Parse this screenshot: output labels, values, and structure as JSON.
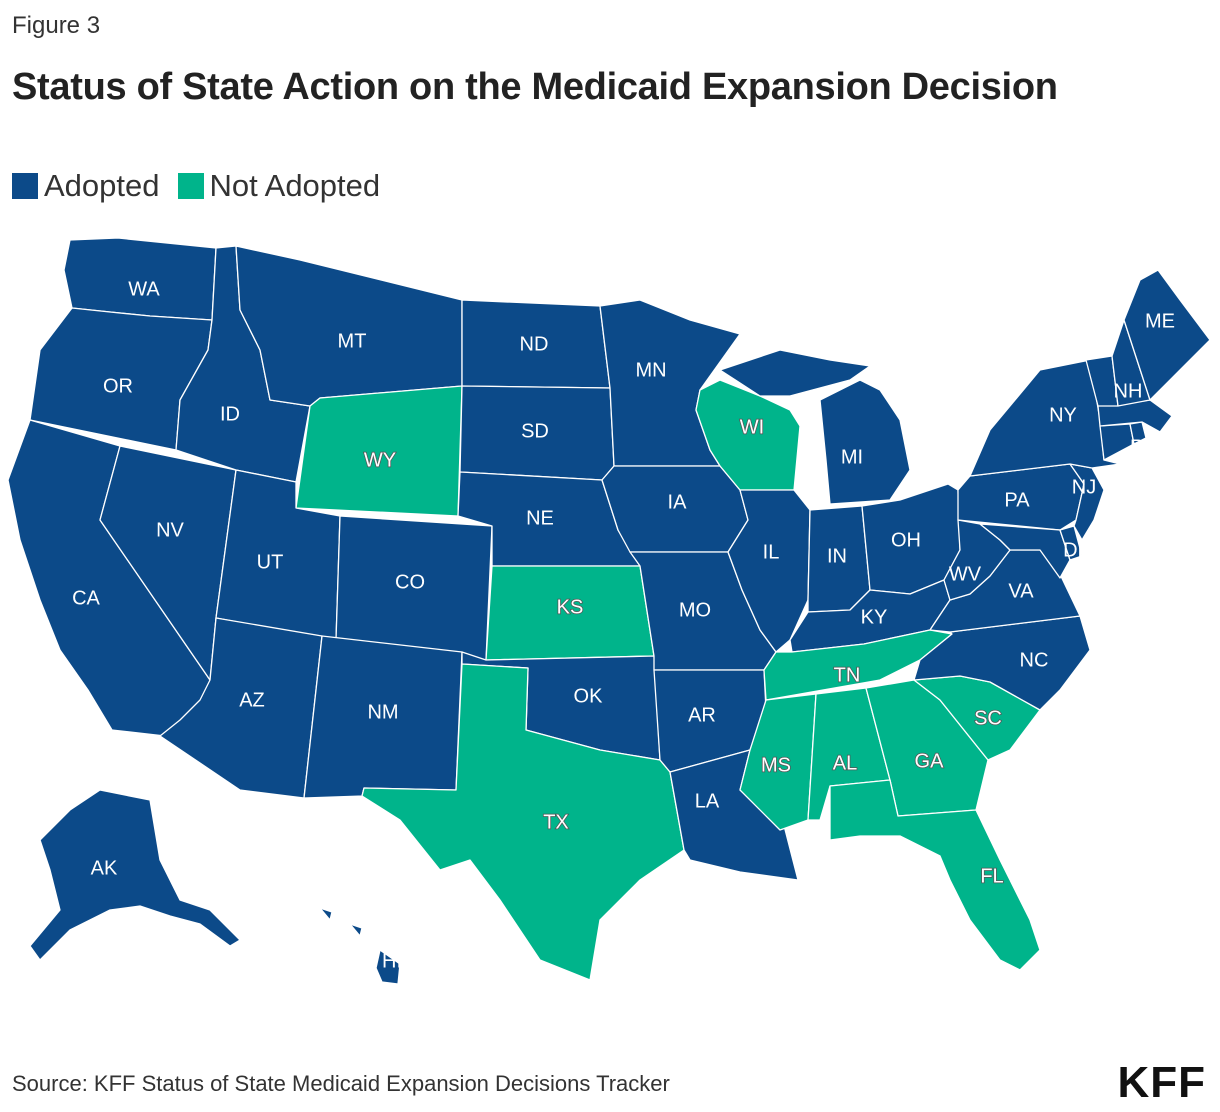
{
  "figure_label": "Figure 3",
  "title": "Status of State Action on the Medicaid Expansion Decision",
  "legend": [
    {
      "label": "Adopted",
      "color": "#0c4a89"
    },
    {
      "label": "Not Adopted",
      "color": "#00b48b"
    }
  ],
  "states": {
    "WA": "Adopted",
    "OR": "Adopted",
    "CA": "Adopted",
    "NV": "Adopted",
    "ID": "Adopted",
    "MT": "Adopted",
    "WY": "Not Adopted",
    "UT": "Adopted",
    "AZ": "Adopted",
    "CO": "Adopted",
    "NM": "Adopted",
    "ND": "Adopted",
    "SD": "Adopted",
    "NE": "Adopted",
    "KS": "Not Adopted",
    "OK": "Adopted",
    "TX": "Not Adopted",
    "MN": "Adopted",
    "IA": "Adopted",
    "MO": "Adopted",
    "AR": "Adopted",
    "LA": "Adopted",
    "WI": "Not Adopted",
    "IL": "Adopted",
    "MI": "Adopted",
    "IN": "Adopted",
    "OH": "Adopted",
    "KY": "Adopted",
    "TN": "Not Adopted",
    "MS": "Not Adopted",
    "AL": "Not Adopted",
    "GA": "Not Adopted",
    "FL": "Not Adopted",
    "SC": "Not Adopted",
    "NC": "Adopted",
    "VA": "Adopted",
    "WV": "Adopted",
    "PA": "Adopted",
    "NY": "Adopted",
    "NJ": "Adopted",
    "DE": "Adopted",
    "ME": "Adopted",
    "NH": "Adopted",
    "RI": "Adopted",
    "VT": "Adopted",
    "MA": "Adopted",
    "CT": "Adopted",
    "MD": "Adopted",
    "AK": "Adopted",
    "HI": "Adopted"
  },
  "source": "Source: KFF Status of State Medicaid Expansion Decisions Tracker",
  "brand": "KFF"
}
